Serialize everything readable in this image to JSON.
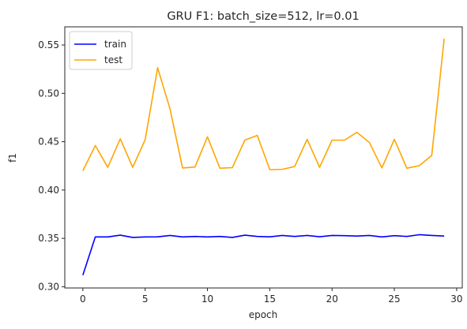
{
  "chart_data": {
    "type": "line",
    "title": "GRU F1: batch_size=512, lr=0.01",
    "xlabel": "epoch",
    "ylabel": "f1",
    "xlim": [
      -1.45,
      30.45
    ],
    "ylim": [
      0.2987,
      0.5688
    ],
    "xticks": [
      0,
      5,
      10,
      15,
      20,
      25,
      30
    ],
    "yticks": [
      0.3,
      0.35,
      0.4,
      0.45,
      0.5,
      0.55
    ],
    "xtick_labels": [
      "0",
      "5",
      "10",
      "15",
      "20",
      "25",
      "30"
    ],
    "ytick_labels": [
      "0.30",
      "0.35",
      "0.40",
      "0.45",
      "0.50",
      "0.55"
    ],
    "grid": false,
    "legend": {
      "position": "top-left"
    },
    "x": [
      0,
      1,
      2,
      3,
      4,
      5,
      6,
      7,
      8,
      9,
      10,
      11,
      12,
      13,
      14,
      15,
      16,
      17,
      18,
      19,
      20,
      21,
      22,
      23,
      24,
      25,
      26,
      27,
      28,
      29
    ],
    "series": [
      {
        "name": "train",
        "color": "#0000ff",
        "values": [
          0.312,
          0.3515,
          0.3515,
          0.3533,
          0.351,
          0.3515,
          0.3516,
          0.353,
          0.3515,
          0.352,
          0.3515,
          0.352,
          0.351,
          0.3533,
          0.352,
          0.3516,
          0.353,
          0.352,
          0.353,
          0.3517,
          0.353,
          0.3528,
          0.3524,
          0.353,
          0.3515,
          0.3528,
          0.352,
          0.3538,
          0.353,
          0.3524
        ]
      },
      {
        "name": "test",
        "color": "#ffa500",
        "values": [
          0.42,
          0.446,
          0.4235,
          0.453,
          0.4235,
          0.452,
          0.5265,
          0.4836,
          0.4228,
          0.4238,
          0.455,
          0.4226,
          0.4232,
          0.4516,
          0.4565,
          0.4211,
          0.4214,
          0.4243,
          0.4524,
          0.4235,
          0.4516,
          0.4516,
          0.4597,
          0.4491,
          0.4229,
          0.4525,
          0.4226,
          0.4252,
          0.4358,
          0.5565
        ]
      }
    ]
  }
}
